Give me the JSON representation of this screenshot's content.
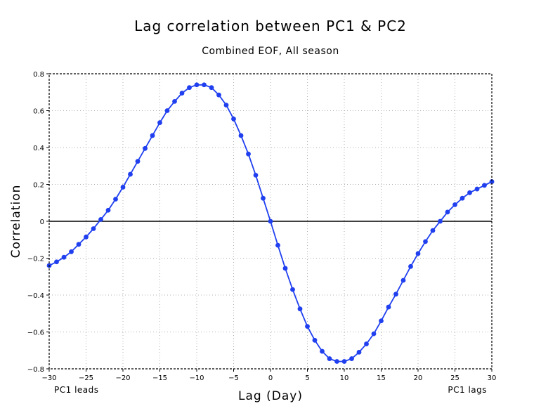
{
  "chart_data": {
    "type": "line",
    "title": "Lag correlation between PC1 & PC2",
    "subtitle": "Combined EOF, All season",
    "xlabel": "Lag (Day)",
    "ylabel": "Correlation",
    "xlim": [
      -30,
      30
    ],
    "ylim": [
      -0.8,
      0.8
    ],
    "grid": true,
    "x_ticks": [
      -30,
      -25,
      -20,
      -15,
      -10,
      -5,
      0,
      5,
      10,
      15,
      20,
      25,
      30
    ],
    "y_ticks": [
      -0.8,
      -0.6,
      -0.4,
      -0.2,
      0,
      0.2,
      0.4,
      0.6,
      0.8
    ],
    "x_tick_labels": [
      "−30",
      "−25",
      "−20",
      "−15",
      "−10",
      "−5",
      "0",
      "5",
      "10",
      "15",
      "20",
      "25",
      "30"
    ],
    "y_tick_labels": [
      "−0.8",
      "−0.6",
      "−0.4",
      "−0.2",
      "0",
      "0.2",
      "0.4",
      "0.6",
      "0.8"
    ],
    "annotations": {
      "left": "PC1 leads",
      "right": "PC1 lags"
    },
    "series": [
      {
        "name": "Lag correlation",
        "color": "#2040f0",
        "x": [
          -30,
          -29,
          -28,
          -27,
          -26,
          -25,
          -24,
          -23,
          -22,
          -21,
          -20,
          -19,
          -18,
          -17,
          -16,
          -15,
          -14,
          -13,
          -12,
          -11,
          -10,
          -9,
          -8,
          -7,
          -6,
          -5,
          -4,
          -3,
          -2,
          -1,
          0,
          1,
          2,
          3,
          4,
          5,
          6,
          7,
          8,
          9,
          10,
          11,
          12,
          13,
          14,
          15,
          16,
          17,
          18,
          19,
          20,
          21,
          22,
          23,
          24,
          25,
          26,
          27,
          28,
          29,
          30
        ],
        "values": [
          -0.24,
          -0.22,
          -0.195,
          -0.165,
          -0.125,
          -0.085,
          -0.04,
          0.01,
          0.06,
          0.12,
          0.185,
          0.255,
          0.325,
          0.395,
          0.465,
          0.535,
          0.6,
          0.65,
          0.695,
          0.725,
          0.74,
          0.74,
          0.725,
          0.685,
          0.63,
          0.555,
          0.465,
          0.365,
          0.25,
          0.125,
          0.0,
          -0.13,
          -0.255,
          -0.37,
          -0.475,
          -0.57,
          -0.645,
          -0.705,
          -0.745,
          -0.76,
          -0.76,
          -0.745,
          -0.71,
          -0.665,
          -0.61,
          -0.54,
          -0.465,
          -0.395,
          -0.32,
          -0.245,
          -0.175,
          -0.11,
          -0.05,
          0.0,
          0.05,
          0.09,
          0.125,
          0.155,
          0.175,
          0.195,
          0.215
        ]
      }
    ]
  }
}
